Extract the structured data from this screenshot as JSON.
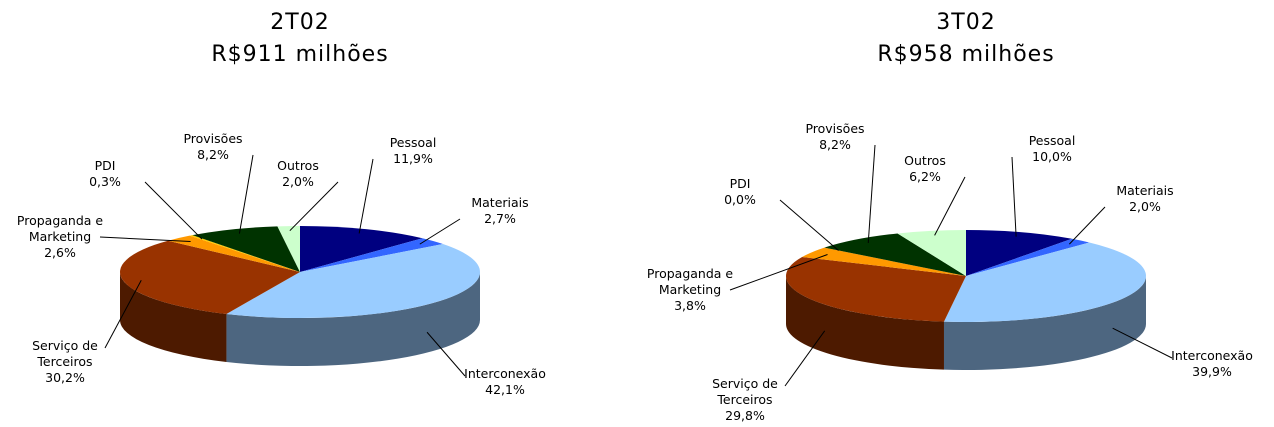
{
  "chart_data": [
    {
      "type": "pie",
      "title": "2T02",
      "subtitle": "R$911 milhões",
      "categories": [
        "Pessoal",
        "Materiais",
        "Interconexão",
        "Serviço de Terceiros",
        "Propaganda e Marketing",
        "PDI",
        "Provisões",
        "Outros"
      ],
      "values": [
        11.9,
        2.7,
        42.1,
        30.2,
        2.6,
        0.3,
        8.2,
        2.0
      ],
      "value_labels": [
        "11,9%",
        "2,7%",
        "42,1%",
        "30,2%",
        "2,6%",
        "0,3%",
        "8,2%",
        "2,0%"
      ],
      "colors": [
        "#000080",
        "#3366ff",
        "#99ccff",
        "#993300",
        "#ff9900",
        "#ffcc00",
        "#003300",
        "#ccffcc"
      ]
    },
    {
      "type": "pie",
      "title": "3T02",
      "subtitle": "R$958 milhões",
      "categories": [
        "Pessoal",
        "Materiais",
        "Interconexão",
        "Serviço de Terceiros",
        "Propaganda e Marketing",
        "PDI",
        "Provisões",
        "Outros"
      ],
      "values": [
        10.0,
        2.0,
        39.9,
        29.8,
        3.8,
        0.0,
        8.2,
        6.2
      ],
      "value_labels": [
        "10,0%",
        "2,0%",
        "39,9%",
        "29,8%",
        "3,8%",
        "0,0%",
        "8,2%",
        "6,2%"
      ],
      "colors": [
        "#000080",
        "#3366ff",
        "#99ccff",
        "#993300",
        "#ff9900",
        "#ffcc00",
        "#003300",
        "#ccffcc"
      ]
    }
  ]
}
